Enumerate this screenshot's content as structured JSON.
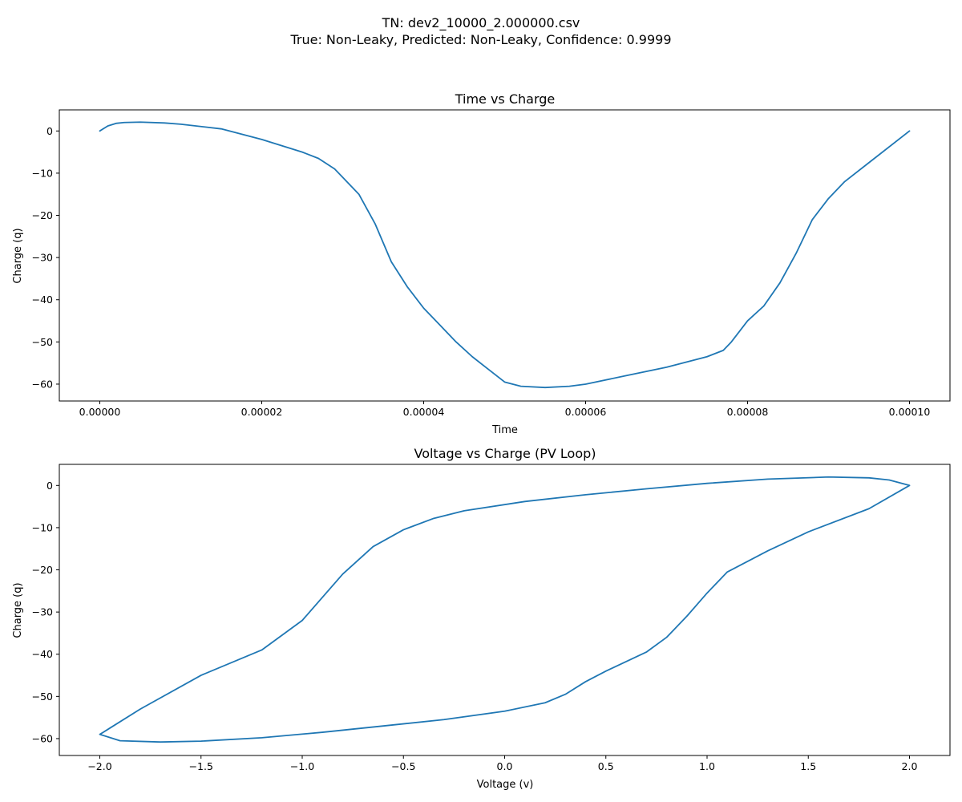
{
  "suptitle": {
    "line1": "TN: dev2_10000_2.000000.csv",
    "line2": "True: Non-Leaky, Predicted: Non-Leaky, Confidence: 0.9999"
  },
  "chart_data": [
    {
      "type": "line",
      "title": "Time vs Charge",
      "xlabel": "Time",
      "ylabel": "Charge (q)",
      "xlim": [
        -5e-06,
        0.000105
      ],
      "ylim": [
        -64,
        5
      ],
      "xticks": [
        0,
        2e-05,
        4e-05,
        6e-05,
        8e-05,
        0.0001
      ],
      "xtick_labels": [
        "0.00000",
        "0.00002",
        "0.00004",
        "0.00006",
        "0.00008",
        "0.00010"
      ],
      "yticks": [
        0,
        -10,
        -20,
        -30,
        -40,
        -50,
        -60
      ],
      "ytick_labels": [
        "0",
        "−10",
        "−20",
        "−30",
        "−40",
        "−50",
        "−60"
      ],
      "grid": false,
      "color": "#1f77b4",
      "series": [
        {
          "x": [
            0,
            1e-06,
            2e-06,
            3e-06,
            5e-06,
            8e-06,
            1e-05,
            1.5e-05,
            2e-05,
            2.5e-05,
            2.7e-05,
            2.9e-05,
            3e-05,
            3.2e-05,
            3.4e-05,
            3.6e-05,
            3.8e-05,
            4e-05,
            4.2e-05,
            4.4e-05,
            4.6e-05,
            4.8e-05,
            5e-05,
            5.2e-05,
            5.5e-05,
            5.8e-05,
            6e-05,
            6.5e-05,
            7e-05,
            7.5e-05,
            7.7e-05,
            7.8e-05,
            8e-05,
            8.2e-05,
            8.4e-05,
            8.6e-05,
            8.8e-05,
            9e-05,
            9.2e-05,
            9.5e-05,
            0.0001
          ],
          "y": [
            0,
            1.2,
            1.8,
            2.0,
            2.1,
            1.9,
            1.6,
            0.5,
            -2,
            -5,
            -6.5,
            -9,
            -11,
            -15,
            -22,
            -31,
            -37,
            -42,
            -46,
            -50,
            -53.5,
            -56.5,
            -59.5,
            -60.5,
            -60.8,
            -60.5,
            -60,
            -58,
            -56,
            -53.5,
            -52,
            -50,
            -45,
            -41.5,
            -36,
            -29,
            -21,
            -16,
            -12,
            -7.5,
            0
          ]
        }
      ]
    },
    {
      "type": "line",
      "title": "Voltage vs Charge (PV Loop)",
      "xlabel": "Voltage (v)",
      "ylabel": "Charge (q)",
      "xlim": [
        -2.2,
        2.2
      ],
      "ylim": [
        -64,
        5
      ],
      "xticks": [
        -2,
        -1.5,
        -1,
        -0.5,
        0,
        0.5,
        1,
        1.5,
        2
      ],
      "xtick_labels": [
        "−2.0",
        "−1.5",
        "−1.0",
        "−0.5",
        "0.0",
        "0.5",
        "1.0",
        "1.5",
        "2.0"
      ],
      "yticks": [
        0,
        -10,
        -20,
        -30,
        -40,
        -50,
        -60
      ],
      "ytick_labels": [
        "0",
        "−10",
        "−20",
        "−30",
        "−40",
        "−50",
        "−60"
      ],
      "grid": false,
      "color": "#1f77b4",
      "series": [
        {
          "x": [
            2.0,
            1.9,
            1.8,
            1.6,
            1.3,
            1.0,
            0.7,
            0.4,
            0.1,
            -0.2,
            -0.35,
            -0.5,
            -0.65,
            -0.8,
            -1.0,
            -1.2,
            -1.5,
            -1.8,
            -1.95,
            -2.0,
            -1.9,
            -1.7,
            -1.5,
            -1.2,
            -0.9,
            -0.6,
            -0.3,
            0.0,
            0.2,
            0.3,
            0.4,
            0.5,
            0.7,
            0.8,
            0.9,
            1.0,
            1.1,
            1.3,
            1.5,
            1.8,
            2.0
          ],
          "y": [
            0,
            1.3,
            1.8,
            2.0,
            1.5,
            0.5,
            -0.8,
            -2.2,
            -3.8,
            -6.0,
            -7.8,
            -10.5,
            -14.5,
            -21,
            -32,
            -39,
            -45,
            -53,
            -57.5,
            -59,
            -60.5,
            -60.8,
            -60.6,
            -59.8,
            -58.5,
            -57,
            -55.5,
            -53.5,
            -51.5,
            -49.5,
            -46.5,
            -44,
            -39.5,
            -36,
            -31,
            -25.5,
            -20.5,
            -15.5,
            -11,
            -5.5,
            0
          ]
        }
      ]
    }
  ]
}
